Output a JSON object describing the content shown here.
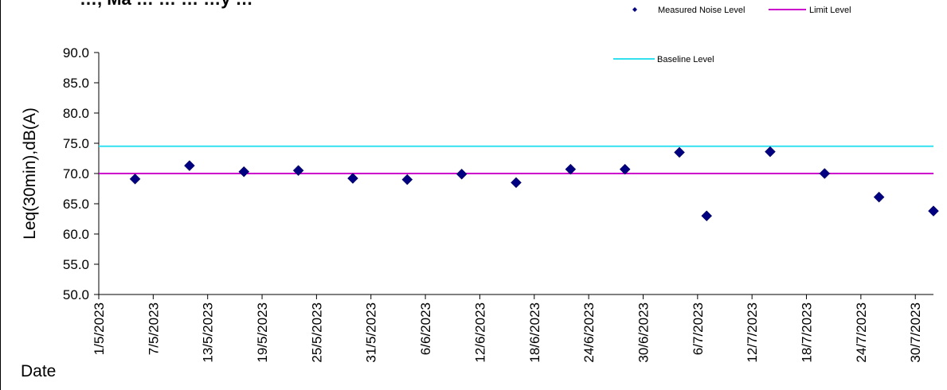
{
  "chart_data": {
    "type": "scatter",
    "title": "…, Ma … … … …y …",
    "ylabel": "Leq(30min),dB(A)",
    "xlabel": "Date",
    "ylim": [
      50,
      90
    ],
    "yticks": [
      "50.0",
      "55.0",
      "60.0",
      "65.0",
      "70.0",
      "75.0",
      "80.0",
      "85.0",
      "90.0"
    ],
    "xlim": [
      "2023-05-01",
      "2023-08-01"
    ],
    "xticks": [
      "1/5/2023",
      "7/5/2023",
      "13/5/2023",
      "19/5/2023",
      "25/5/2023",
      "31/5/2023",
      "6/6/2023",
      "12/6/2023",
      "18/6/2023",
      "24/6/2023",
      "30/6/2023",
      "6/7/2023",
      "12/7/2023",
      "18/7/2023",
      "24/7/2023",
      "30/7/2023"
    ],
    "series": [
      {
        "name": "Measured Noise Level",
        "kind": "scatter",
        "color": "#000080",
        "marker": "diamond",
        "points": [
          {
            "x": "2023-05-05",
            "y": 69.1
          },
          {
            "x": "2023-05-11",
            "y": 71.3
          },
          {
            "x": "2023-05-17",
            "y": 70.3
          },
          {
            "x": "2023-05-23",
            "y": 70.5
          },
          {
            "x": "2023-05-29",
            "y": 69.2
          },
          {
            "x": "2023-06-04",
            "y": 69.0
          },
          {
            "x": "2023-06-10",
            "y": 69.9
          },
          {
            "x": "2023-06-16",
            "y": 68.5
          },
          {
            "x": "2023-06-22",
            "y": 70.7
          },
          {
            "x": "2023-06-28",
            "y": 70.7
          },
          {
            "x": "2023-07-04",
            "y": 73.5
          },
          {
            "x": "2023-07-07",
            "y": 63.0
          },
          {
            "x": "2023-07-14",
            "y": 73.6
          },
          {
            "x": "2023-07-20",
            "y": 70.0
          },
          {
            "x": "2023-07-26",
            "y": 66.1
          },
          {
            "x": "2023-08-01",
            "y": 63.8
          }
        ]
      },
      {
        "name": "Limit Level",
        "kind": "hline",
        "color": "#cc00cc",
        "y": 70.0
      },
      {
        "name": "Baseline Level",
        "kind": "hline",
        "color": "#33e0f0",
        "y": 74.5
      }
    ],
    "legend": [
      {
        "label": "Measured Noise Level",
        "placement": "top-right"
      },
      {
        "label": "Limit Level",
        "placement": "top-right"
      },
      {
        "label": "Baseline Level",
        "placement": "upper-right"
      }
    ],
    "grid": false
  }
}
